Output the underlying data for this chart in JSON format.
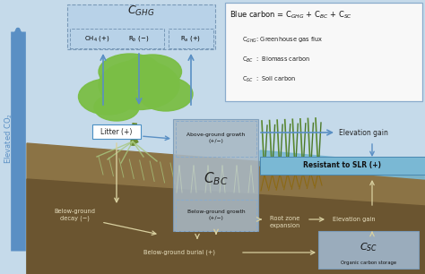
{
  "bg_color": "#ffffff",
  "sky_color": "#c5daea",
  "ground_color": "#8B7345",
  "ground_dark": "#6B5530",
  "water_color": "#7ab8d4",
  "box_ghg_color": "#b8d2e8",
  "arrow_blue": "#5a8fc4",
  "arrow_white": "#e8e4d0",
  "title_y": "Elevated CO$_2$",
  "formula_line1": "Blue carbon = C$_{GHG}$ + C$_{BC}$ + C$_{SC}$",
  "legend_lines": [
    "C$_{GHG}$: Greenhouse gas flux",
    "C$_{BC}$  :  Biomass carbon",
    "C$_{SC}$  :  Soil carbon"
  ],
  "ghg_label": "C$_{GHG}$",
  "ch4_label": "CH$_4$ (+)",
  "rb_label": "R$_b$ (−)",
  "ra_label": "R$_a$ (+)",
  "litter_label": "Litter (+)",
  "above_ground_label": "Above-ground growth\n(+/−)",
  "cbc_label": "C$_{BC}$",
  "below_ground_label": "Below-ground growth\n(+/−)",
  "bg_decay_label": "Below-ground\ndecay (−)",
  "bg_burial_label": "Below-ground burial (+)",
  "root_zone_label": "Root zone\nexpansion",
  "elevation_gain1_label": "Elevation gain",
  "elevation_gain2_label": "Elevation gain",
  "slr_label": "Resistant to SLR (+)",
  "csc_label": "C$_{SC}$",
  "csc_sub_label": "Organic carbon storage",
  "tree_color": "#7abe45",
  "tree_dark": "#5a9030",
  "root_color": "#a8c880",
  "grass_color": "#5a8830",
  "grass_root_color": "#8B6914"
}
